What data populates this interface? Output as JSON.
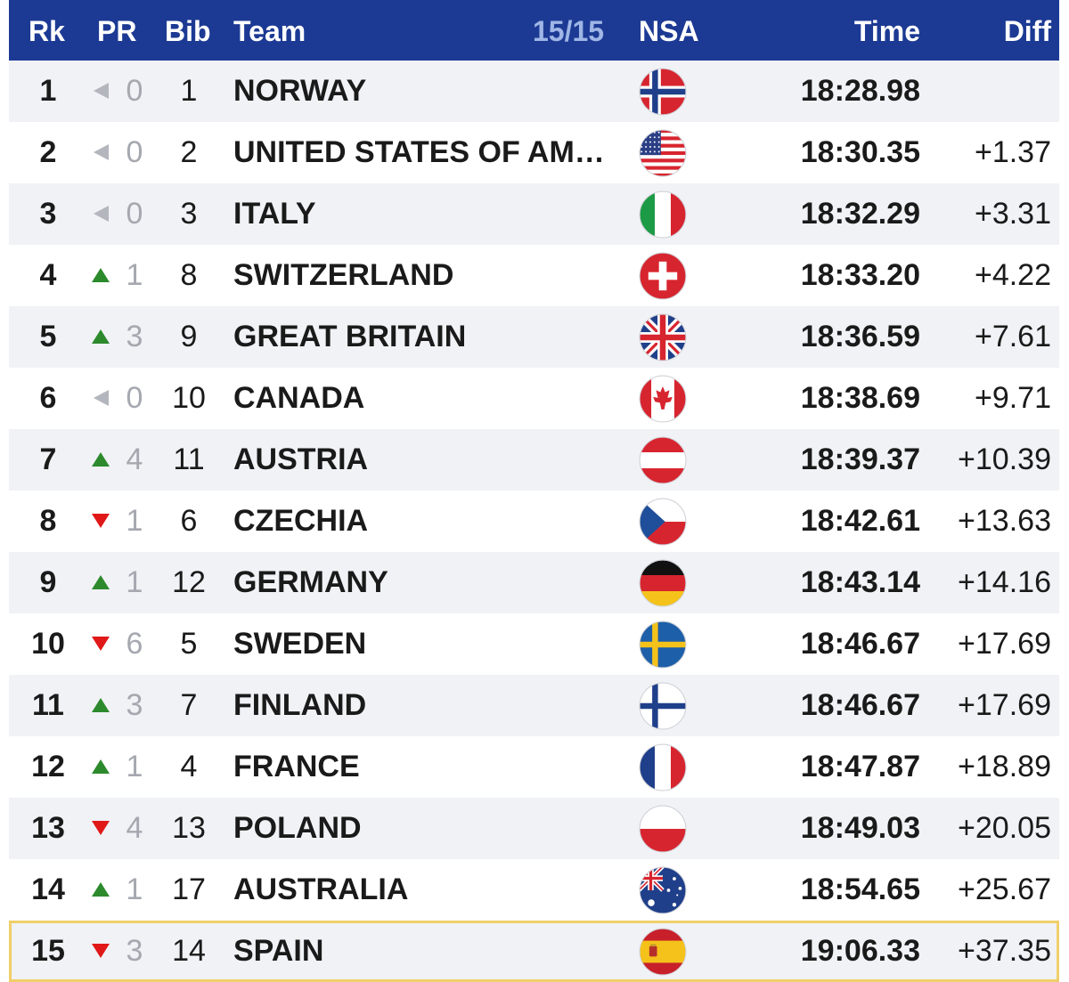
{
  "header": {
    "rk": "Rk",
    "pr": "PR",
    "bib": "Bib",
    "team": "Team",
    "count": "15/15",
    "nsa": "NSA",
    "time": "Time",
    "diff": "Diff"
  },
  "colors": {
    "header_bg": "#1c3a94",
    "header_count": "#9fb6e6",
    "up": "#2c8a2c",
    "down": "#e01818",
    "same": "#b4b6bd",
    "highlight_border": "#f0cf6a"
  },
  "rows": [
    {
      "rk": "1",
      "pr_dir": "same",
      "pr": "0",
      "bib": "1",
      "team": "NORWAY",
      "flag": "norway-flag-icon",
      "time": "18:28.98",
      "diff": ""
    },
    {
      "rk": "2",
      "pr_dir": "same",
      "pr": "0",
      "bib": "2",
      "team": "UNITED STATES OF AM…",
      "flag": "usa-flag-icon",
      "time": "18:30.35",
      "diff": "+1.37"
    },
    {
      "rk": "3",
      "pr_dir": "same",
      "pr": "0",
      "bib": "3",
      "team": "ITALY",
      "flag": "italy-flag-icon",
      "time": "18:32.29",
      "diff": "+3.31"
    },
    {
      "rk": "4",
      "pr_dir": "up",
      "pr": "1",
      "bib": "8",
      "team": "SWITZERLAND",
      "flag": "switzerland-flag-icon",
      "time": "18:33.20",
      "diff": "+4.22"
    },
    {
      "rk": "5",
      "pr_dir": "up",
      "pr": "3",
      "bib": "9",
      "team": "GREAT BRITAIN",
      "flag": "great-britain-flag-icon",
      "time": "18:36.59",
      "diff": "+7.61"
    },
    {
      "rk": "6",
      "pr_dir": "same",
      "pr": "0",
      "bib": "10",
      "team": "CANADA",
      "flag": "canada-flag-icon",
      "time": "18:38.69",
      "diff": "+9.71"
    },
    {
      "rk": "7",
      "pr_dir": "up",
      "pr": "4",
      "bib": "11",
      "team": "AUSTRIA",
      "flag": "austria-flag-icon",
      "time": "18:39.37",
      "diff": "+10.39"
    },
    {
      "rk": "8",
      "pr_dir": "down",
      "pr": "1",
      "bib": "6",
      "team": "CZECHIA",
      "flag": "czechia-flag-icon",
      "time": "18:42.61",
      "diff": "+13.63"
    },
    {
      "rk": "9",
      "pr_dir": "up",
      "pr": "1",
      "bib": "12",
      "team": "GERMANY",
      "flag": "germany-flag-icon",
      "time": "18:43.14",
      "diff": "+14.16"
    },
    {
      "rk": "10",
      "pr_dir": "down",
      "pr": "6",
      "bib": "5",
      "team": "SWEDEN",
      "flag": "sweden-flag-icon",
      "time": "18:46.67",
      "diff": "+17.69"
    },
    {
      "rk": "11",
      "pr_dir": "up",
      "pr": "3",
      "bib": "7",
      "team": "FINLAND",
      "flag": "finland-flag-icon",
      "time": "18:46.67",
      "diff": "+17.69"
    },
    {
      "rk": "12",
      "pr_dir": "up",
      "pr": "1",
      "bib": "4",
      "team": "FRANCE",
      "flag": "france-flag-icon",
      "time": "18:47.87",
      "diff": "+18.89"
    },
    {
      "rk": "13",
      "pr_dir": "down",
      "pr": "4",
      "bib": "13",
      "team": "POLAND",
      "flag": "poland-flag-icon",
      "time": "18:49.03",
      "diff": "+20.05"
    },
    {
      "rk": "14",
      "pr_dir": "up",
      "pr": "1",
      "bib": "17",
      "team": "AUSTRALIA",
      "flag": "australia-flag-icon",
      "time": "18:54.65",
      "diff": "+25.67"
    },
    {
      "rk": "15",
      "pr_dir": "down",
      "pr": "3",
      "bib": "14",
      "team": "SPAIN",
      "flag": "spain-flag-icon",
      "time": "19:06.33",
      "diff": "+37.35",
      "highlighted": true
    }
  ]
}
